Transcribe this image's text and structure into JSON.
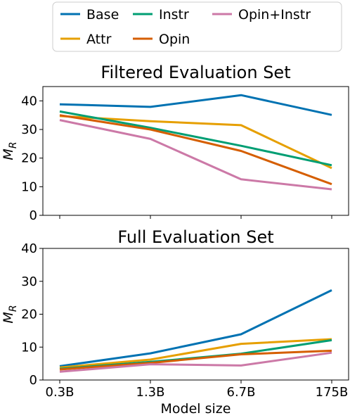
{
  "chart_data": {
    "type": "line",
    "legend": {
      "placement": "top",
      "entries": [
        {
          "name": "Base",
          "color": "#0072b2"
        },
        {
          "name": "Attr",
          "color": "#e69f00"
        },
        {
          "name": "Instr",
          "color": "#009e73"
        },
        {
          "name": "Opin",
          "color": "#d55e00"
        },
        {
          "name": "Opin+Instr",
          "color": "#cc79a7"
        }
      ]
    },
    "xlabel": "Model size",
    "categories": [
      "0.3B",
      "1.3B",
      "6.7B",
      "175B"
    ],
    "ylabel_main": "M",
    "ylabel_sub": "R",
    "panels": [
      {
        "title": "Filtered Evaluation Set",
        "ylim": [
          0,
          45
        ],
        "yticks": [
          0,
          10,
          20,
          30,
          40
        ],
        "series": [
          {
            "name": "Base",
            "values": [
              38.8,
              37.9,
              42.0,
              35.1
            ]
          },
          {
            "name": "Attr",
            "values": [
              34.7,
              32.9,
              31.5,
              16.5
            ]
          },
          {
            "name": "Instr",
            "values": [
              36.3,
              30.6,
              24.3,
              17.5
            ]
          },
          {
            "name": "Opin",
            "values": [
              35.0,
              30.0,
              22.5,
              10.9
            ]
          },
          {
            "name": "Opin+Instr",
            "values": [
              33.3,
              26.7,
              12.6,
              9.1
            ]
          }
        ]
      },
      {
        "title": "Full Evaluation Set",
        "ylim": [
          0,
          40
        ],
        "yticks": [
          0,
          10,
          20,
          30,
          40
        ],
        "series": [
          {
            "name": "Base",
            "values": [
              4.2,
              8.1,
              13.9,
              27.3
            ]
          },
          {
            "name": "Attr",
            "values": [
              3.8,
              6.2,
              11.0,
              12.4
            ]
          },
          {
            "name": "Instr",
            "values": [
              3.4,
              5.5,
              8.0,
              12.1
            ]
          },
          {
            "name": "Opin",
            "values": [
              3.2,
              5.2,
              7.8,
              8.9
            ]
          },
          {
            "name": "Opin+Instr",
            "values": [
              2.5,
              4.8,
              4.4,
              8.3
            ]
          }
        ]
      }
    ]
  }
}
